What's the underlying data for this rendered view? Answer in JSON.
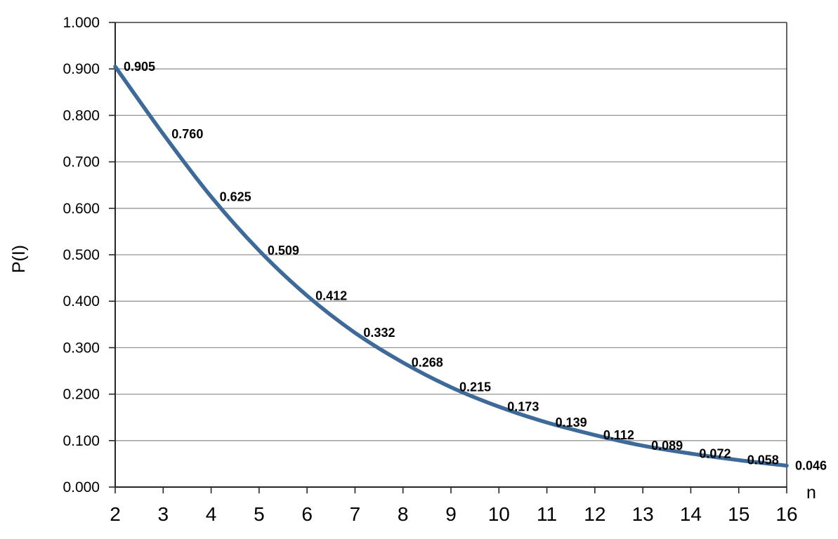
{
  "chart_data": {
    "type": "line",
    "title": "",
    "xlabel": "n",
    "ylabel": "P(I)",
    "x": [
      2,
      3,
      4,
      5,
      6,
      7,
      8,
      9,
      10,
      11,
      12,
      13,
      14,
      15,
      16
    ],
    "series": [
      {
        "name": "P(I)",
        "values": [
          0.905,
          0.76,
          0.625,
          0.509,
          0.412,
          0.332,
          0.268,
          0.215,
          0.173,
          0.139,
          0.112,
          0.089,
          0.072,
          0.058,
          0.046
        ]
      }
    ],
    "data_labels": [
      "0.905",
      "0.760",
      "0.625",
      "0.509",
      "0.412",
      "0.332",
      "0.268",
      "0.215",
      "0.173",
      "0.139",
      "0.112",
      "0.089",
      "0.072",
      "0.058",
      "0.046"
    ],
    "xticks": [
      "2",
      "3",
      "4",
      "5",
      "6",
      "7",
      "8",
      "9",
      "10",
      "11",
      "12",
      "13",
      "14",
      "15",
      "16"
    ],
    "yticks": [
      "0.000",
      "0.100",
      "0.200",
      "0.300",
      "0.400",
      "0.500",
      "0.600",
      "0.700",
      "0.800",
      "0.900",
      "1.000"
    ],
    "xlim": [
      2,
      16
    ],
    "ylim": [
      0,
      1
    ],
    "grid": "horizontal",
    "legend": "none",
    "smooth_line": true,
    "colors": {
      "line": "#3E6A99",
      "grid": "#969696",
      "plot_border": "#3c3c3c",
      "axis": "#262626",
      "tick_label": "#000000",
      "data_label": "#000000",
      "background": "#ffffff"
    }
  }
}
